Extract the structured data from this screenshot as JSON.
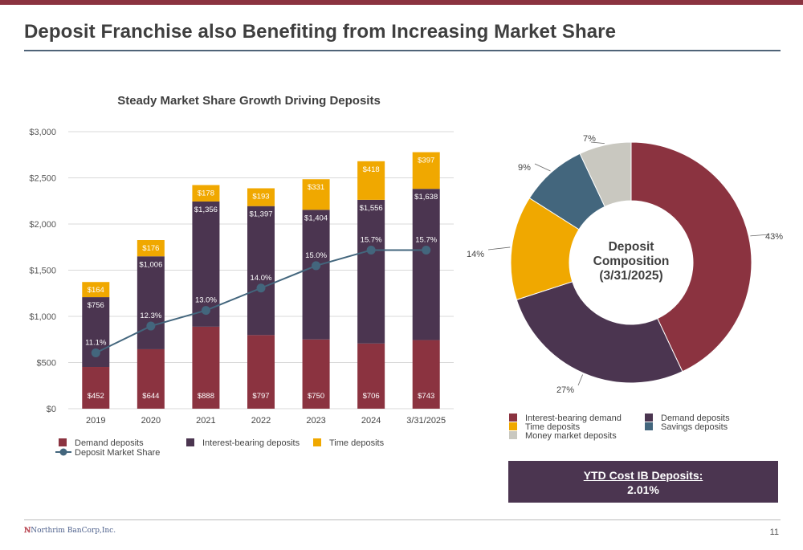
{
  "header": {
    "title": "Deposit Franchise also Benefiting from Increasing Market Share"
  },
  "colors": {
    "brand": "#8B3340",
    "interest_bearing_demand": "#8B3340",
    "demand": "#4B3550",
    "time": "#F0A800",
    "savings": "#43667D",
    "money_market": "#C9C8C0",
    "market_share_line": "#43667D"
  },
  "chart_data": [
    {
      "type": "bar",
      "stacked": true,
      "title": "Steady Market Share Growth Driving Deposits",
      "categories": [
        "2019",
        "2020",
        "2021",
        "2022",
        "2023",
        "2024",
        "3/31/2025"
      ],
      "series": [
        {
          "name": "Demand deposits",
          "color": "#8B3340",
          "values": [
            452,
            644,
            888,
            797,
            750,
            706,
            743
          ],
          "labels": [
            "$452",
            "$644",
            "$888",
            "$797",
            "$750",
            "$706",
            "$743"
          ]
        },
        {
          "name": "Interest-bearing deposits",
          "color": "#4B3550",
          "values": [
            756,
            1006,
            1356,
            1397,
            1404,
            1556,
            1638
          ],
          "labels": [
            "$756",
            "$1,006",
            "$1,356",
            "$1,397",
            "$1,404",
            "$1,556",
            "$1,638"
          ]
        },
        {
          "name": "Time deposits",
          "color": "#F0A800",
          "values": [
            164,
            176,
            178,
            193,
            331,
            418,
            397
          ],
          "labels": [
            "$164",
            "$176",
            "$178",
            "$193",
            "$331",
            "$418",
            "$397"
          ]
        }
      ],
      "line_series": {
        "name": "Deposit Market Share",
        "color": "#43667D",
        "values": [
          11.1,
          12.3,
          13.0,
          14.0,
          15.0,
          15.7,
          15.7
        ],
        "labels": [
          "11.1%",
          "12.3%",
          "13.0%",
          "14.0%",
          "15.0%",
          "15.7%",
          "15.7%"
        ]
      },
      "yticks": [
        "$0",
        "$500",
        "$1,000",
        "$1,500",
        "$2,000",
        "$2,500",
        "$3,000"
      ],
      "ylim": [
        0,
        3000
      ],
      "grid": true,
      "legend_position": "bottom"
    },
    {
      "type": "pie",
      "donut": true,
      "center_label": [
        "Deposit",
        "Composition",
        "(3/31/2025)"
      ],
      "slices": [
        {
          "name": "Interest-bearing demand",
          "value": 43,
          "label": "43%",
          "color": "#8B3340"
        },
        {
          "name": "Demand deposits",
          "value": 27,
          "label": "27%",
          "color": "#4B3550"
        },
        {
          "name": "Time deposits",
          "value": 14,
          "label": "14%",
          "color": "#F0A800"
        },
        {
          "name": "Savings deposits",
          "value": 9,
          "label": "9%",
          "color": "#43667D"
        },
        {
          "name": "Money market deposits",
          "value": 7,
          "label": "7%",
          "color": "#C9C8C0"
        }
      ],
      "legend_position": "bottom"
    }
  ],
  "cost_box": {
    "line1": "YTD Cost IB Deposits:",
    "line2": "2.01%"
  },
  "footer": {
    "logo_mark": "ℕ",
    "logo_text": "Northrim BanCorp,Inc.",
    "page_number": "11"
  }
}
